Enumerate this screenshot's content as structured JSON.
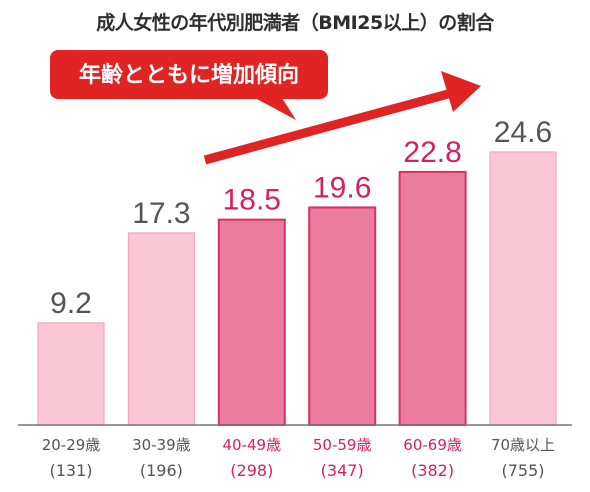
{
  "title": "成人女性の年代別肥満者（BMI25以上）の割合",
  "callout": "年齢とともに増加傾向",
  "colors": {
    "light_bar": "#fbc6d6",
    "light_border": "#f2a8bf",
    "dark_bar": "#ec7c9d",
    "dark_border": "#d9306a",
    "highlight_text": "#d61f64",
    "normal_text": "#555555",
    "arrow": "#e02323",
    "axis": "#777777"
  },
  "chart_data": {
    "type": "bar",
    "title": "成人女性の年代別肥満者（BMI25以上）の割合",
    "categories": [
      "20-29歳",
      "30-39歳",
      "40-49歳",
      "50-59歳",
      "60-69歳",
      "70歳以上"
    ],
    "counts": [
      "(131)",
      "(196)",
      "(298)",
      "(347)",
      "(382)",
      "(755)"
    ],
    "values": [
      9.2,
      17.3,
      18.5,
      19.6,
      22.8,
      24.6
    ],
    "highlighted": [
      false,
      false,
      true,
      true,
      true,
      false
    ],
    "ylim": [
      0,
      30
    ],
    "grid": false
  }
}
